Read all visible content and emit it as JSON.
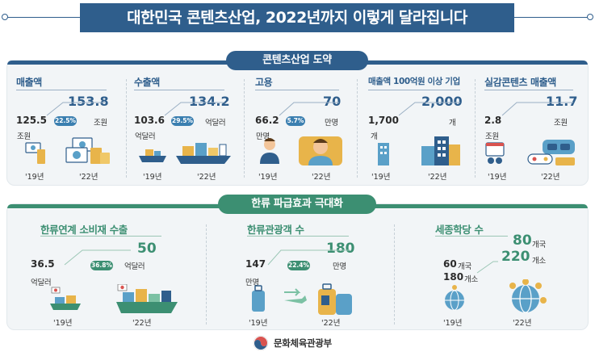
{
  "title": "대한민국 콘텐츠산업, 2022년까지 이렇게 달라집니다",
  "sections": {
    "top": {
      "label": "콘텐츠산업 도약",
      "cards": [
        {
          "title": "매출액",
          "old_value": "125.5",
          "old_unit": "조원",
          "growth": "22.5%",
          "new_value": "153.8",
          "new_unit": "조원",
          "old_year": "'19년",
          "new_year": "'22년",
          "icon": "money-icon"
        },
        {
          "title": "수출액",
          "old_value": "103.6",
          "old_unit": "억달러",
          "growth": "29.5%",
          "new_value": "134.2",
          "new_unit": "억달러",
          "old_year": "'19년",
          "new_year": "'22년",
          "icon": "cargo-ship-icon"
        },
        {
          "title": "고용",
          "old_value": "66.2",
          "old_unit": "만명",
          "growth": "5.7%",
          "new_value": "70",
          "new_unit": "만명",
          "old_year": "'19년",
          "new_year": "'22년",
          "icon": "worker-icon"
        },
        {
          "title": "매출액 100억원 이상 기업",
          "old_value": "1,700",
          "old_unit": "개",
          "growth": "",
          "new_value": "2,000",
          "new_unit": "개",
          "old_year": "'19년",
          "new_year": "'22년",
          "icon": "building-icon"
        },
        {
          "title": "실감콘텐츠 매출액",
          "old_value": "2.8",
          "old_unit": "조원",
          "growth": "",
          "new_value": "11.7",
          "new_unit": "조원",
          "old_year": "'19년",
          "new_year": "'22년",
          "icon": "vr-headset-icon"
        }
      ]
    },
    "bottom": {
      "label": "한류 파급효과 극대화",
      "cards": [
        {
          "title": "한류연계 소비재 수출",
          "old_value": "36.5",
          "old_unit": "억달러",
          "growth": "36.8%",
          "new_value": "50",
          "new_unit": "억달러",
          "old_year": "'19년",
          "new_year": "'22년",
          "icon": "export-ship-icon"
        },
        {
          "title": "한류관광객 수",
          "old_value": "147",
          "old_unit": "만명",
          "growth": "22.4%",
          "new_value": "180",
          "new_unit": "만명",
          "old_year": "'19년",
          "new_year": "'22년",
          "icon": "suitcase-icon"
        },
        {
          "title": "세종학당 수",
          "old_count": "60",
          "old_count_unit": "개국",
          "old_value": "180",
          "old_unit": "개소",
          "new_count": "80",
          "new_count_unit": "개국",
          "new_value": "220",
          "new_unit": "개소",
          "old_year": "'19년",
          "new_year": "'22년",
          "icon": "globe-icon"
        }
      ]
    }
  },
  "footer": {
    "ministry": "문화체육관광부",
    "logo": "ministry-emblem-icon"
  },
  "colors": {
    "navy": "#2f5e8c",
    "green": "#3c8f72",
    "panel": "#f2f5f7"
  }
}
